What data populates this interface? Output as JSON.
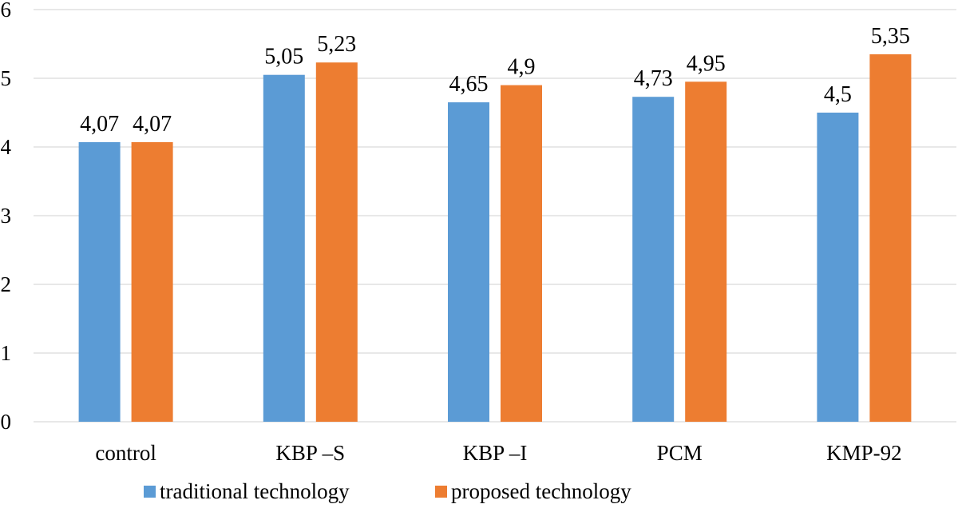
{
  "chart_data": {
    "type": "bar",
    "title": "",
    "xlabel": "",
    "ylabel": "",
    "categories": [
      "control",
      "KBP –S",
      "KBP –I",
      "PCM",
      "KMP-92"
    ],
    "series": [
      {
        "name": "traditional technology",
        "color": "#5b9bd5",
        "values": [
          4.07,
          5.05,
          4.65,
          4.73,
          4.5
        ],
        "labels": [
          "4,07",
          "5,05",
          "4,65",
          "4,73",
          "4,5"
        ]
      },
      {
        "name": "proposed technology",
        "color": "#ed7d31",
        "values": [
          4.07,
          5.23,
          4.9,
          4.95,
          5.35
        ],
        "labels": [
          "4,07",
          "5,23",
          "4,9",
          "4,95",
          "5,35"
        ]
      }
    ],
    "ylim": [
      0,
      6
    ],
    "yticks": [
      0,
      1,
      2,
      3,
      4,
      5,
      6
    ],
    "ytick_labels": [
      "0",
      "1",
      "2",
      "3",
      "4",
      "5",
      "6"
    ],
    "grid": true,
    "legend_position": "bottom"
  }
}
